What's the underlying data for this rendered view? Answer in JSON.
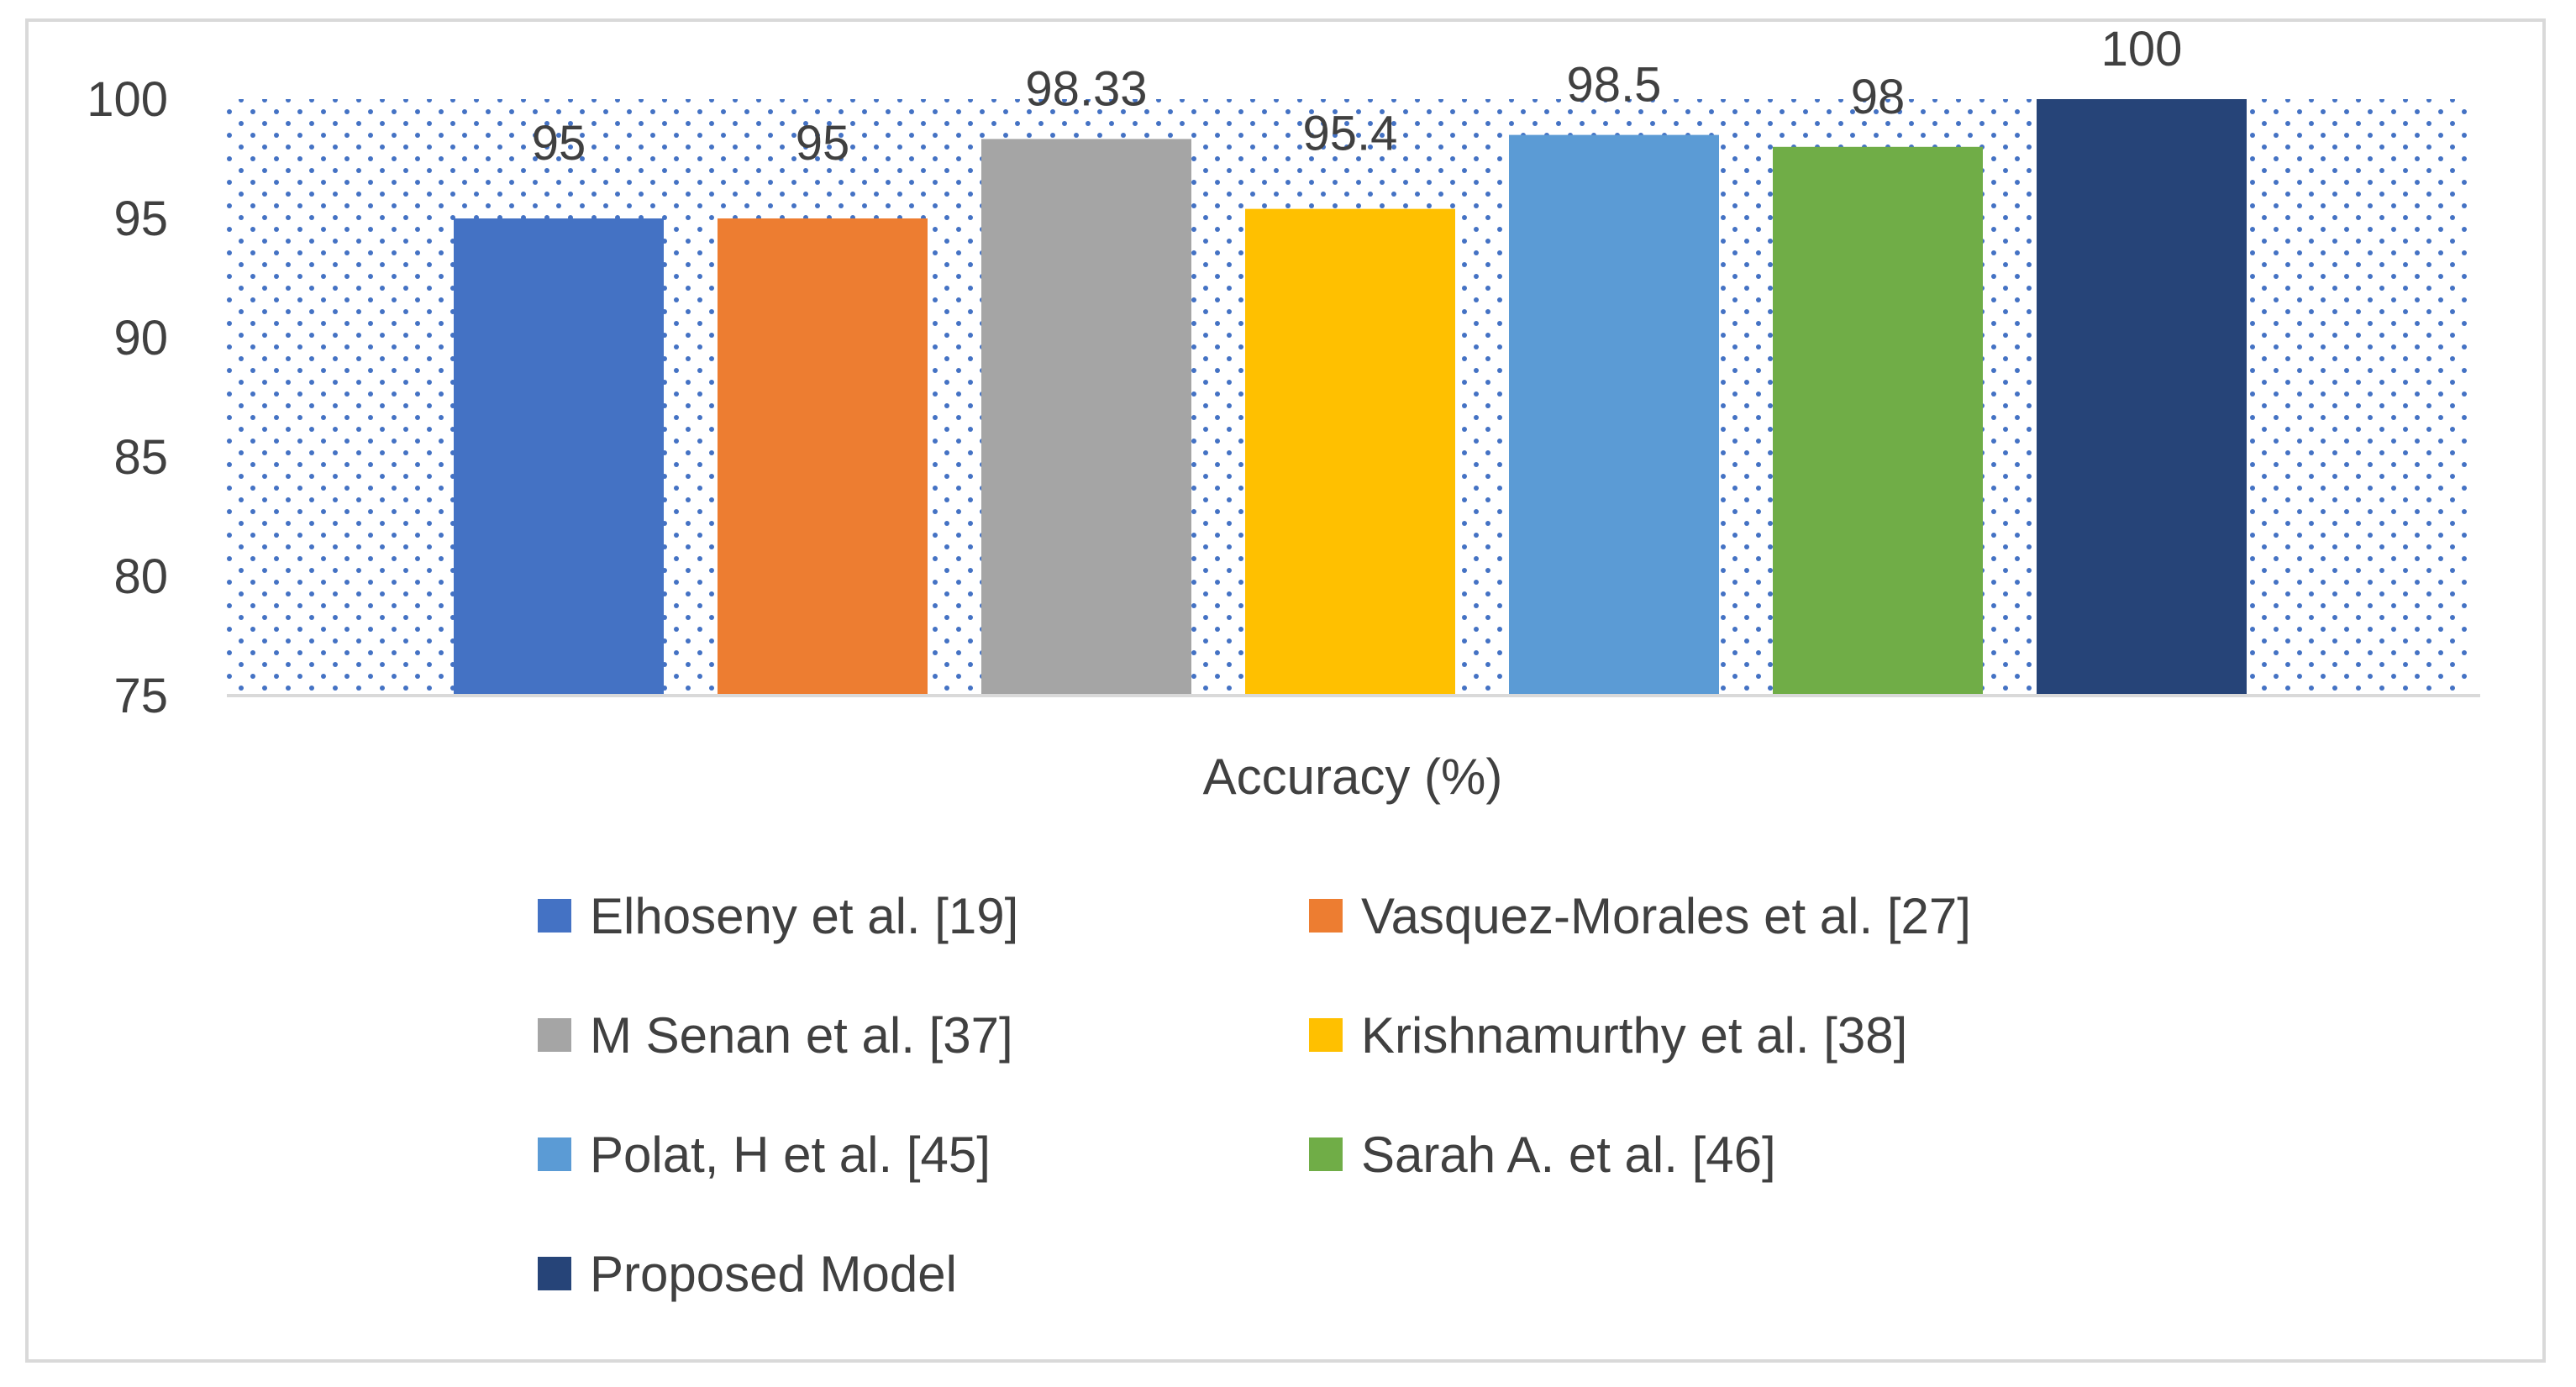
{
  "chart_data": {
    "type": "bar",
    "xlabel": "Accuracy (%)",
    "ylabel": "",
    "ylim": [
      75,
      100
    ],
    "yticks": [
      75,
      80,
      85,
      90,
      95,
      100
    ],
    "grid": false,
    "plot_background": "dotted-blue",
    "legend_position": "bottom",
    "series": [
      {
        "name": "Elhoseny et al. [19]",
        "value": 95,
        "label": "95",
        "color": "#4472C4"
      },
      {
        "name": "Vasquez-Morales et al. [27]",
        "value": 95,
        "label": "95",
        "color": "#ED7D31"
      },
      {
        "name": "M Senan et al. [37]",
        "value": 98.33,
        "label": "98.33",
        "color": "#A5A5A5"
      },
      {
        "name": "Krishnamurthy et al. [38]",
        "value": 95.4,
        "label": "95.4",
        "color": "#FFC000"
      },
      {
        "name": "Polat, H et al. [45]",
        "value": 98.5,
        "label": "98.5",
        "color": "#5B9BD5"
      },
      {
        "name": "Sarah A. et al. [46]",
        "value": 98,
        "label": "98",
        "color": "#70AD47"
      },
      {
        "name": "Proposed Model",
        "value": 100,
        "label": "100",
        "color": "#264478"
      }
    ]
  }
}
